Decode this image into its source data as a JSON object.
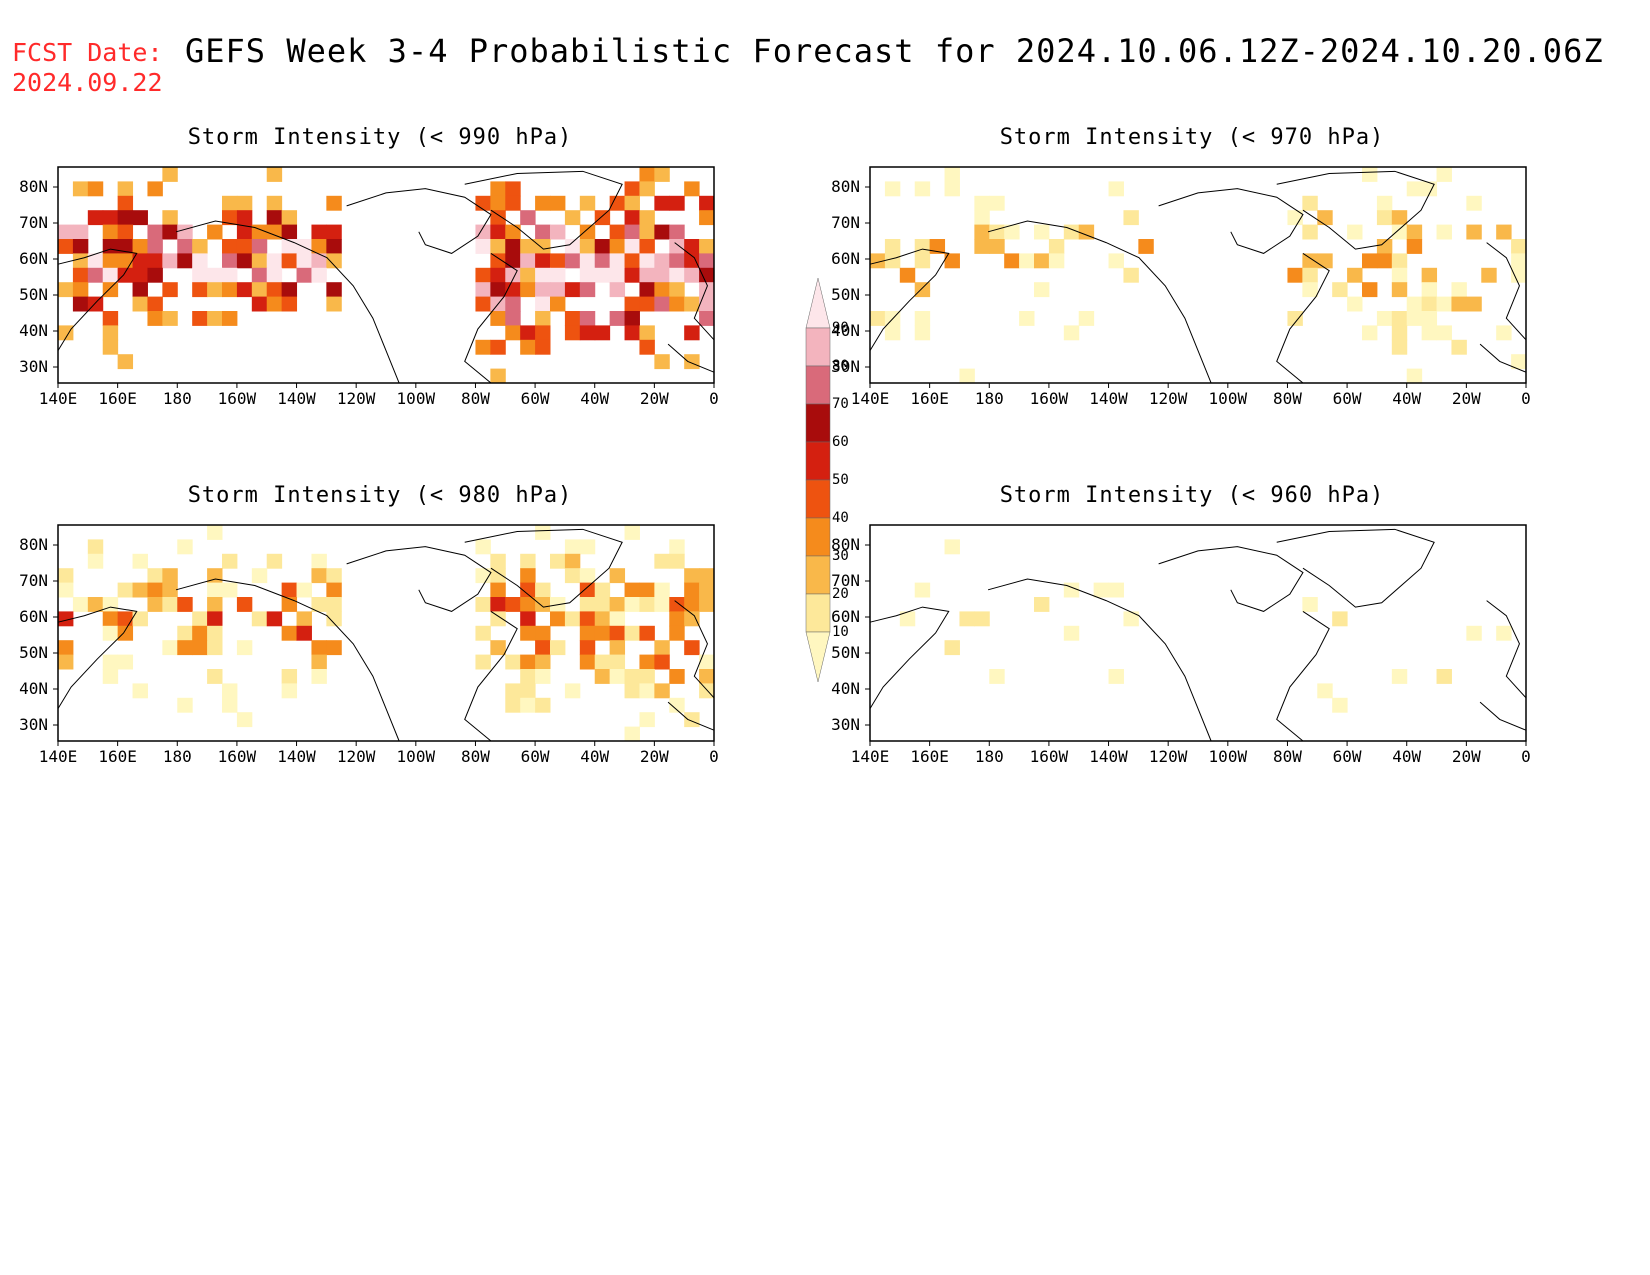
{
  "header": {
    "fcst_label": "FCST Date:",
    "fcst_date": "2024.09.22",
    "title": "GEFS Week 3-4 Probabilistic Forecast for 2024.10.06.12Z-2024.10.20.06Z"
  },
  "axes": {
    "lat_labels": [
      "80N",
      "70N",
      "60N",
      "50N",
      "40N",
      "30N"
    ],
    "lon_labels": [
      "140E",
      "160E",
      "180",
      "160W",
      "140W",
      "120W",
      "100W",
      "80W",
      "60W",
      "40W",
      "20W",
      "0"
    ]
  },
  "panels": [
    {
      "title": "Storm Intensity (< 990 hPa)",
      "threshold_hpa": 990,
      "intensity": "high"
    },
    {
      "title": "Storm Intensity (< 970 hPa)",
      "threshold_hpa": 970,
      "intensity": "low"
    },
    {
      "title": "Storm Intensity (< 980 hPa)",
      "threshold_hpa": 980,
      "intensity": "medium"
    },
    {
      "title": "Storm Intensity (< 960 hPa)",
      "threshold_hpa": 960,
      "intensity": "verylow"
    }
  ],
  "colorbar": {
    "labels": [
      "10",
      "20",
      "30",
      "40",
      "50",
      "60",
      "70",
      "80",
      "90"
    ],
    "colors": [
      "#fff7c0",
      "#fde89a",
      "#f9b84a",
      "#f58b1c",
      "#ee5310",
      "#d42010",
      "#a80c0c",
      "#d96a7a",
      "#f3b4be",
      "#fde6ea"
    ]
  }
}
